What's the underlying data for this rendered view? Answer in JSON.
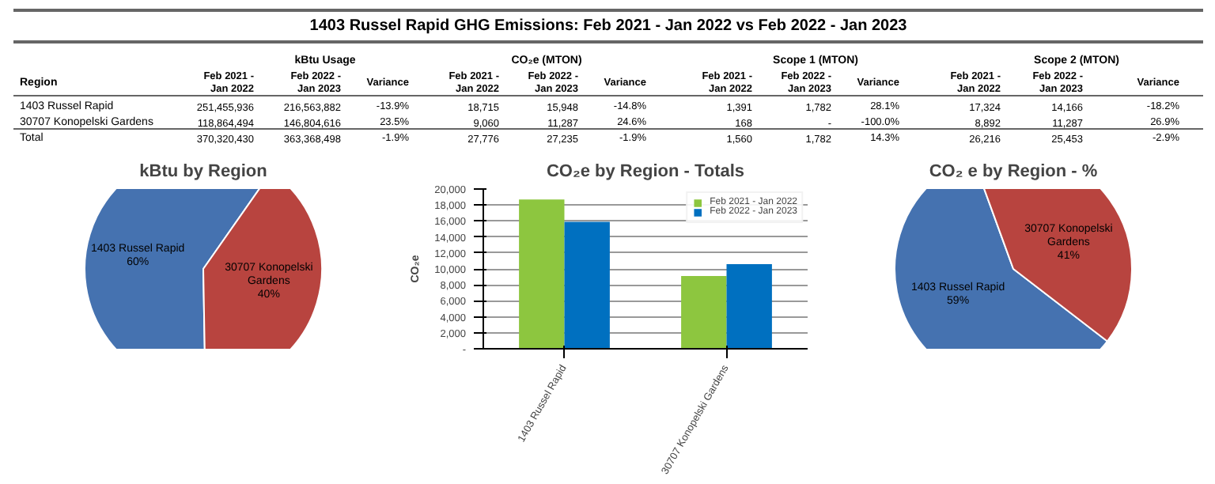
{
  "chart_data": [
    {
      "type": "other",
      "title": "1403 Russel Rapid GHG Emissions: Feb 2021 - Jan 2022 vs Feb 2022 - Jan 2023",
      "annotations": [
        "kBtu Usage",
        "CO₂e (MTON)",
        "Scope 1 (MTON)",
        "Scope 2 (MTON)",
        "Region",
        "Feb 2021 - Jan 2022",
        "Feb 2022 - Jan 2023",
        "Variance",
        "Feb 2021 - Jan 2022",
        "Feb 2022 - Jan 2023",
        "Variance",
        "Feb 2021 - Jan 2022",
        "Feb 2022 - Jan 2023",
        "Variance",
        "Feb 2021 - Jan 2022",
        "Feb 2022 - Jan 2023",
        "Variance",
        "1403 Russel Rapid",
        "251,455,936",
        "216,563,882",
        "-13.9%",
        "18,715",
        "15,948",
        "-14.8%",
        "1,391",
        "1,782",
        "28.1%",
        "17,324",
        "14,166",
        "-18.2%",
        "30707 Konopelski Gardens",
        "118,864,494",
        "146,804,616",
        "23.5%",
        "9,060",
        "11,287",
        "24.6%",
        "168",
        "-",
        "-100.0%",
        "8,892",
        "11,287",
        "26.9%",
        "Total",
        "370,320,430",
        "363,368,498",
        "-1.9%",
        "27,776",
        "27,235",
        "-1.9%",
        "1,560",
        "1,782",
        "14.3%",
        "26,216",
        "25,453",
        "-2.9%"
      ]
    },
    {
      "type": "pie",
      "title": "kBtu by Region",
      "categories": [
        "1403 Russel Rapid",
        "30707 Konopelski Gardens"
      ],
      "values": [
        60,
        40
      ],
      "value_labels": [
        "60%",
        "40%"
      ],
      "colors": [
        "#4572b0",
        "#b8443f"
      ]
    },
    {
      "type": "bar",
      "title": "CO₂e by Region - Totals",
      "ylabel": "CO₂e",
      "categories": [
        "1403 Russel Rapid",
        "30707 Konopelski Gardens"
      ],
      "series": [
        {
          "name": "Feb 2021 - Jan 2022",
          "color": "#8dc63f",
          "values": [
            18700,
            9100
          ]
        },
        {
          "name": "Feb 2022 - Jan 2023",
          "color": "#0070c0",
          "values": [
            15900,
            10600
          ]
        }
      ],
      "ylim": [
        0,
        20000
      ],
      "yticks": [
        {
          "value": 0,
          "label": "-"
        },
        {
          "value": 2000,
          "label": "2,000"
        },
        {
          "value": 4000,
          "label": "4,000"
        },
        {
          "value": 6000,
          "label": "6,000"
        },
        {
          "value": 8000,
          "label": "8,000"
        },
        {
          "value": 10000,
          "label": "10,000"
        },
        {
          "value": 12000,
          "label": "12,000"
        },
        {
          "value": 14000,
          "label": "14,000"
        },
        {
          "value": 16000,
          "label": "16,000"
        },
        {
          "value": 18000,
          "label": "18,000"
        },
        {
          "value": 20000,
          "label": "20,000"
        }
      ],
      "grid": "y",
      "legend": "top right"
    },
    {
      "type": "pie",
      "title": "CO₂ e by Region - %",
      "categories": [
        "1403 Russel Rapid",
        "30707 Konopelski Gardens"
      ],
      "values": [
        59,
        41
      ],
      "value_labels": [
        "59%",
        "41%"
      ],
      "colors": [
        "#4572b0",
        "#b8443f"
      ]
    }
  ]
}
